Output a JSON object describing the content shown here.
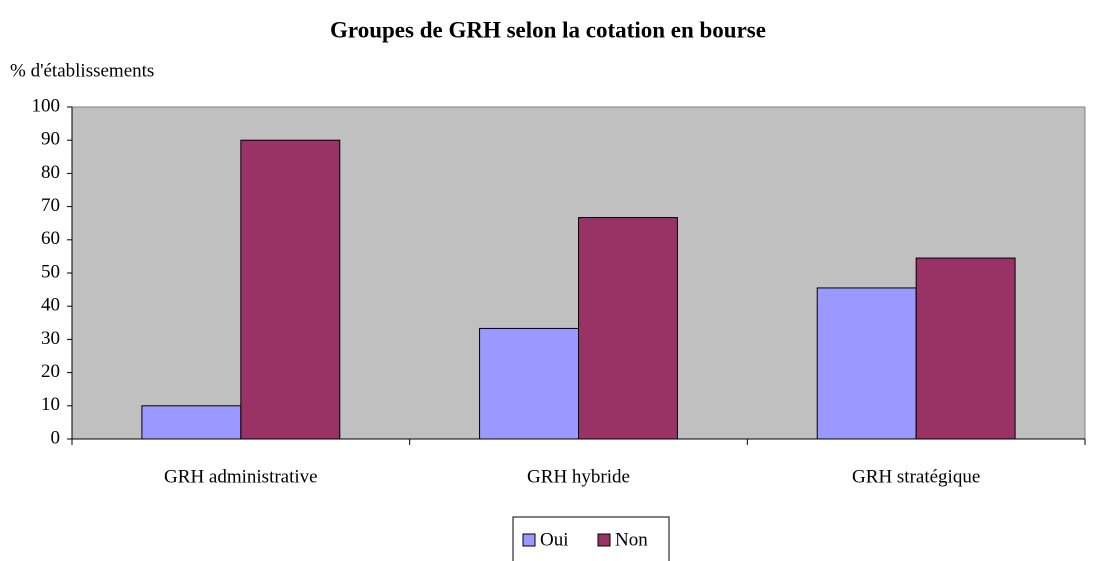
{
  "chart_data": {
    "type": "bar",
    "title": "Groupes de GRH selon la cotation en bourse",
    "y_label": "% d'établissements",
    "categories": [
      "GRH administrative",
      "GRH hybride",
      "GRH stratégique"
    ],
    "series": [
      {
        "name": "Oui",
        "color": "#9999ff",
        "values": [
          10,
          33.3,
          45.5
        ]
      },
      {
        "name": "Non",
        "color": "#993366",
        "values": [
          90,
          66.7,
          54.5
        ]
      }
    ],
    "ylim": [
      0,
      100
    ],
    "yticks": [
      0,
      10,
      20,
      30,
      40,
      50,
      60,
      70,
      80,
      90,
      100
    ],
    "plot_background": "#c0c0c0",
    "legend": "bottom"
  }
}
